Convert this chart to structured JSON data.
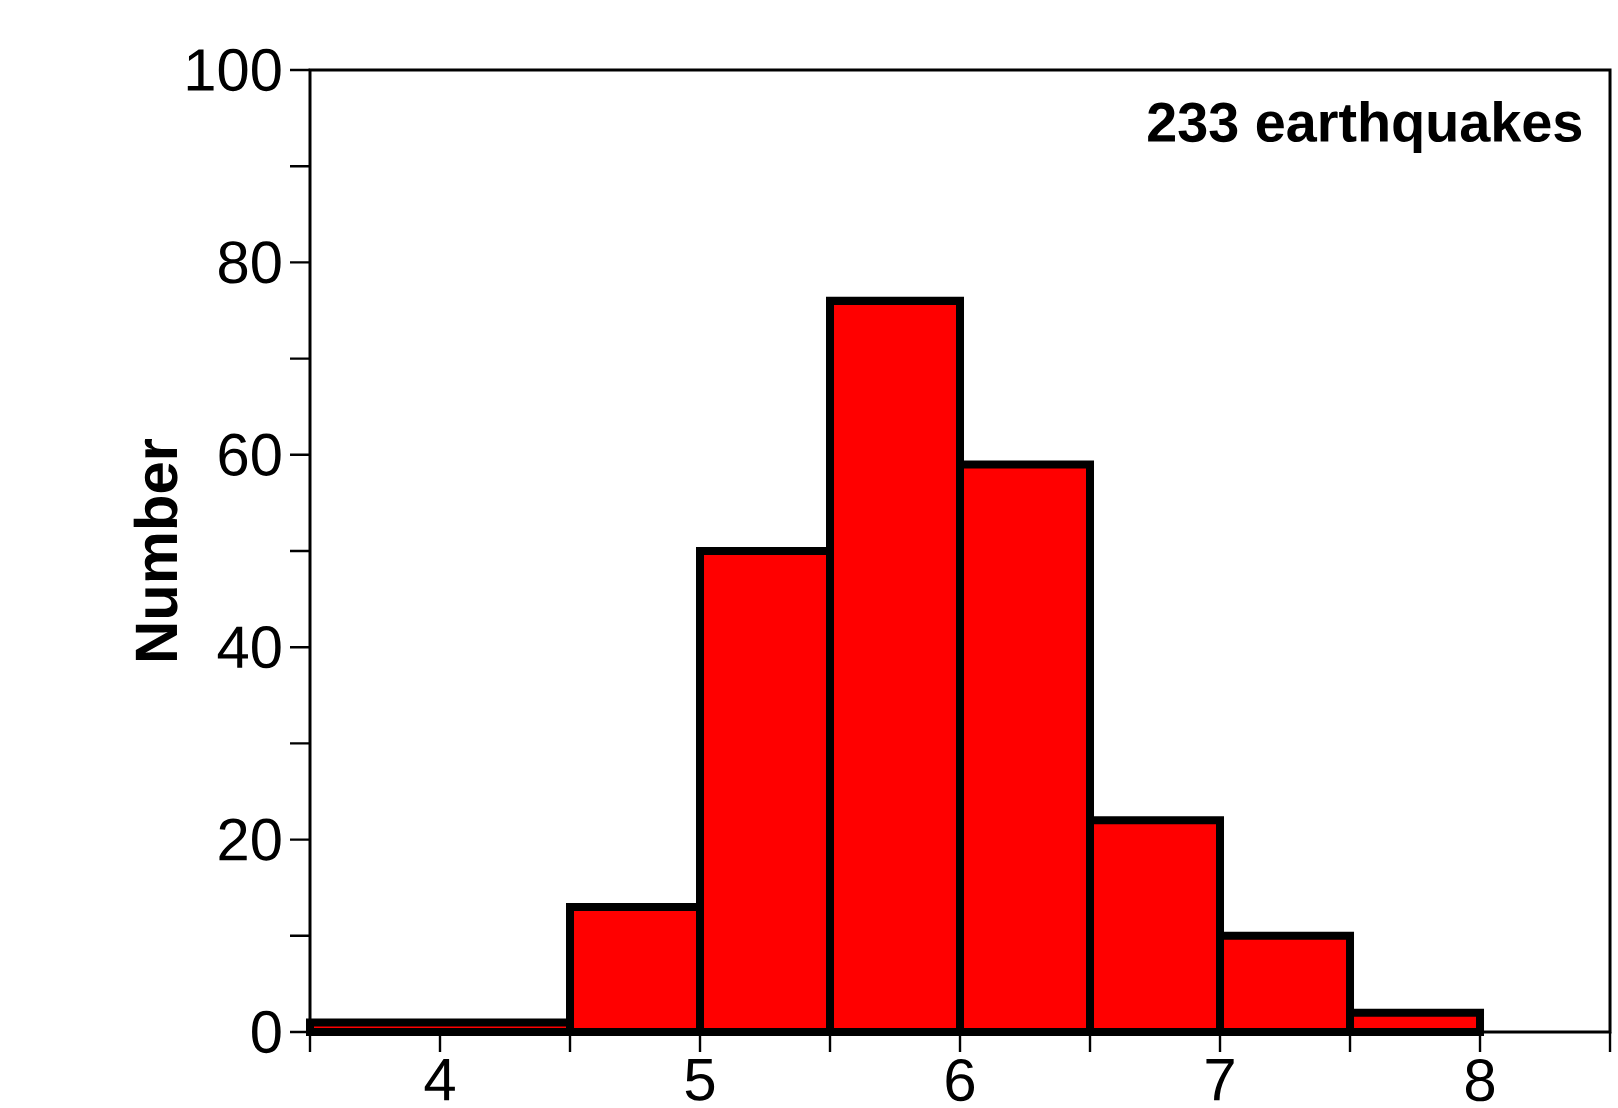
{
  "chart_data": {
    "type": "histogram",
    "ylabel": "Number",
    "annotations": [
      "233 earthquakes"
    ],
    "bins": [
      3.5,
      4.5,
      5,
      5.5,
      6,
      6.5,
      7,
      7.5,
      8
    ],
    "values": [
      1,
      13,
      50,
      76,
      59,
      22,
      10,
      2
    ],
    "color": "#ff0000",
    "xlim": [
      3.5,
      8.5
    ],
    "xticks": [
      {
        "value": 3.5,
        "label": null
      },
      4,
      {
        "value": 4.5,
        "label": null
      },
      5,
      {
        "value": 5.5,
        "label": null
      },
      6,
      {
        "value": 6.5,
        "label": null
      },
      7,
      {
        "value": 7.5,
        "label": null
      },
      8,
      {
        "value": 8.5,
        "label": null
      }
    ],
    "ylim": [
      0,
      100
    ],
    "yticks": [
      0,
      {
        "value": 10,
        "label": null
      },
      20,
      {
        "value": 30,
        "label": null
      },
      40,
      {
        "value": 50,
        "label": null
      },
      60,
      {
        "value": 70,
        "label": null
      },
      80,
      {
        "value": 90,
        "label": null
      },
      100
    ],
    "grid": false
  }
}
